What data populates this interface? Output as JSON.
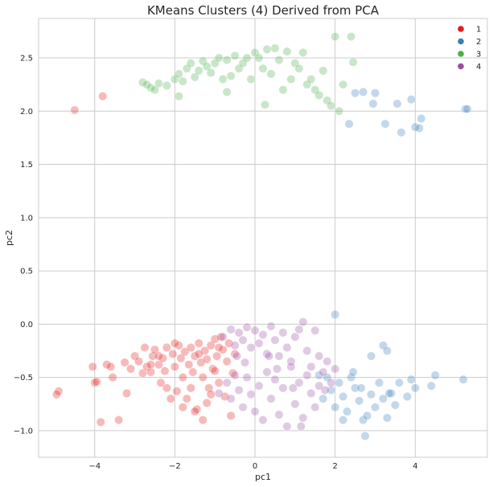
{
  "chart_data": {
    "type": "scatter",
    "title": "KMeans Clusters (4) Derived from PCA",
    "xlabel": "pc1",
    "ylabel": "pc2",
    "xlim": [
      -5.4,
      5.8
    ],
    "ylim": [
      -1.25,
      2.87
    ],
    "xticks": [
      -4,
      -2,
      0,
      2,
      4
    ],
    "yticks": [
      -1.0,
      -0.5,
      0.0,
      0.5,
      1.0,
      1.5,
      2.0,
      2.5
    ],
    "grid": true,
    "legend_position": "top-right",
    "point_alpha": 0.3,
    "series": [
      {
        "name": "1",
        "color": "#e41a1c",
        "points": [
          [
            -4.5,
            2.01
          ],
          [
            -3.8,
            2.14
          ],
          [
            -4.9,
            -0.63
          ],
          [
            -4.95,
            -0.66
          ],
          [
            -4.0,
            -0.55
          ],
          [
            -4.05,
            -0.4
          ],
          [
            -3.95,
            -0.54
          ],
          [
            -3.85,
            -0.92
          ],
          [
            -3.7,
            -0.38
          ],
          [
            -3.6,
            -0.4
          ],
          [
            -3.55,
            -0.5
          ],
          [
            -3.4,
            -0.9
          ],
          [
            -3.25,
            -0.36
          ],
          [
            -3.2,
            -0.65
          ],
          [
            -3.1,
            -0.42
          ],
          [
            -3.0,
            -0.3
          ],
          [
            -2.9,
            -0.35
          ],
          [
            -2.8,
            -0.46
          ],
          [
            -2.75,
            -0.22
          ],
          [
            -2.7,
            -0.4
          ],
          [
            -2.6,
            -0.45
          ],
          [
            -2.55,
            -0.3
          ],
          [
            -2.5,
            -0.24
          ],
          [
            -2.4,
            -0.38
          ],
          [
            -2.35,
            -0.55
          ],
          [
            -2.3,
            -0.32
          ],
          [
            -2.25,
            -0.44
          ],
          [
            -2.2,
            -0.22
          ],
          [
            -2.1,
            -0.7
          ],
          [
            -2.05,
            -0.28
          ],
          [
            -2.0,
            -0.4
          ],
          [
            -1.95,
            -0.63
          ],
          [
            -1.9,
            -0.2
          ],
          [
            -1.85,
            -0.32
          ],
          [
            -1.8,
            -0.5
          ],
          [
            -1.75,
            -0.26
          ],
          [
            -1.7,
            -0.7
          ],
          [
            -1.65,
            -0.38
          ],
          [
            -1.6,
            -0.22
          ],
          [
            -1.55,
            -0.45
          ],
          [
            -1.5,
            -0.3
          ],
          [
            -1.45,
            -0.8
          ],
          [
            -1.4,
            -0.18
          ],
          [
            -1.35,
            -0.36
          ],
          [
            -1.3,
            -0.5
          ],
          [
            -1.25,
            -0.25
          ],
          [
            -1.2,
            -0.33
          ],
          [
            -1.15,
            -0.6
          ],
          [
            -1.1,
            -0.2
          ],
          [
            -1.05,
            -0.42
          ],
          [
            -1.0,
            -0.14
          ],
          [
            -0.95,
            -0.3
          ],
          [
            -0.9,
            -0.55
          ],
          [
            -0.85,
            -0.12
          ],
          [
            -0.8,
            -0.24
          ],
          [
            -0.75,
            -0.68
          ],
          [
            -0.7,
            -0.35
          ],
          [
            -0.65,
            -0.18
          ],
          [
            -0.6,
            -0.86
          ],
          [
            -0.55,
            -0.46
          ],
          [
            -0.5,
            -0.28
          ],
          [
            -1.1,
            -0.66
          ],
          [
            -1.2,
            -0.74
          ],
          [
            -1.3,
            -0.9
          ],
          [
            -1.5,
            -0.82
          ],
          [
            -1.8,
            -0.78
          ],
          [
            -2.2,
            -0.6
          ],
          [
            -2.6,
            -0.38
          ],
          [
            -1.6,
            -0.6
          ],
          [
            -1.0,
            -0.44
          ],
          [
            -0.9,
            -0.22
          ],
          [
            -2.0,
            -0.18
          ],
          [
            -2.4,
            -0.3
          ],
          [
            -1.4,
            -0.28
          ]
        ]
      },
      {
        "name": "2",
        "color": "#377eb8",
        "points": [
          [
            2.5,
            2.17
          ],
          [
            2.7,
            2.18
          ],
          [
            3.0,
            2.17
          ],
          [
            2.95,
            2.07
          ],
          [
            2.35,
            1.88
          ],
          [
            3.25,
            1.88
          ],
          [
            3.55,
            2.07
          ],
          [
            3.65,
            1.8
          ],
          [
            3.9,
            2.11
          ],
          [
            4.0,
            1.85
          ],
          [
            4.15,
            1.93
          ],
          [
            4.1,
            1.84
          ],
          [
            5.25,
            2.02
          ],
          [
            5.3,
            2.02
          ],
          [
            2.0,
            0.09
          ],
          [
            2.9,
            -0.3
          ],
          [
            3.2,
            -0.2
          ],
          [
            3.3,
            -0.25
          ],
          [
            4.5,
            -0.48
          ],
          [
            5.2,
            -0.52
          ],
          [
            1.6,
            -0.48
          ],
          [
            1.7,
            -0.7
          ],
          [
            1.8,
            -0.5
          ],
          [
            1.9,
            -0.62
          ],
          [
            2.0,
            -0.78
          ],
          [
            2.1,
            -0.55
          ],
          [
            2.2,
            -0.68
          ],
          [
            2.3,
            -0.82
          ],
          [
            2.4,
            -0.5
          ],
          [
            2.5,
            -0.6
          ],
          [
            2.6,
            -0.72
          ],
          [
            2.7,
            -0.9
          ],
          [
            2.75,
            -1.05
          ],
          [
            2.8,
            -0.86
          ],
          [
            2.9,
            -0.66
          ],
          [
            3.0,
            -0.78
          ],
          [
            3.1,
            -0.55
          ],
          [
            3.2,
            -0.7
          ],
          [
            3.3,
            -0.88
          ],
          [
            3.4,
            -0.65
          ],
          [
            3.5,
            -0.76
          ],
          [
            3.6,
            -0.55
          ],
          [
            3.8,
            -0.68
          ],
          [
            3.9,
            -0.52
          ],
          [
            4.0,
            -0.6
          ],
          [
            4.4,
            -0.58
          ],
          [
            2.2,
            -0.9
          ],
          [
            2.45,
            -0.45
          ],
          [
            2.65,
            -0.6
          ],
          [
            3.35,
            -0.65
          ]
        ]
      },
      {
        "name": "3",
        "color": "#4daf4a",
        "points": [
          [
            -2.8,
            2.27
          ],
          [
            -2.7,
            2.25
          ],
          [
            -2.6,
            2.22
          ],
          [
            -2.5,
            2.2
          ],
          [
            -2.4,
            2.26
          ],
          [
            -2.2,
            2.24
          ],
          [
            -2.0,
            2.3
          ],
          [
            -1.9,
            2.35
          ],
          [
            -1.8,
            2.28
          ],
          [
            -1.7,
            2.4
          ],
          [
            -1.6,
            2.45
          ],
          [
            -1.5,
            2.32
          ],
          [
            -1.4,
            2.38
          ],
          [
            -1.3,
            2.47
          ],
          [
            -1.2,
            2.42
          ],
          [
            -1.1,
            2.36
          ],
          [
            -1.0,
            2.45
          ],
          [
            -0.9,
            2.5
          ],
          [
            -0.8,
            2.3
          ],
          [
            -0.7,
            2.48
          ],
          [
            -0.6,
            2.33
          ],
          [
            -0.5,
            2.52
          ],
          [
            -0.4,
            2.4
          ],
          [
            -0.3,
            2.45
          ],
          [
            -0.2,
            2.5
          ],
          [
            -0.1,
            2.3
          ],
          [
            0.0,
            2.55
          ],
          [
            0.1,
            2.5
          ],
          [
            0.2,
            2.4
          ],
          [
            0.3,
            2.58
          ],
          [
            0.4,
            2.35
          ],
          [
            0.5,
            2.59
          ],
          [
            0.6,
            2.48
          ],
          [
            0.7,
            2.2
          ],
          [
            0.8,
            2.56
          ],
          [
            0.9,
            2.3
          ],
          [
            1.0,
            2.45
          ],
          [
            1.1,
            2.4
          ],
          [
            1.2,
            2.55
          ],
          [
            1.3,
            2.25
          ],
          [
            1.4,
            2.3
          ],
          [
            1.5,
            2.2
          ],
          [
            1.6,
            2.15
          ],
          [
            1.7,
            2.38
          ],
          [
            1.8,
            2.1
          ],
          [
            1.9,
            2.05
          ],
          [
            2.0,
            2.7
          ],
          [
            2.1,
            2.0
          ],
          [
            2.2,
            2.25
          ],
          [
            2.4,
            2.7
          ],
          [
            2.45,
            2.46
          ],
          [
            -1.9,
            2.14
          ],
          [
            -0.7,
            2.18
          ],
          [
            0.25,
            2.06
          ]
        ]
      },
      {
        "name": "4",
        "color": "#984ea3",
        "points": [
          [
            -0.8,
            -0.12
          ],
          [
            -0.6,
            -0.05
          ],
          [
            -0.5,
            -0.2
          ],
          [
            -0.4,
            -0.08
          ],
          [
            -0.3,
            -0.15
          ],
          [
            -0.2,
            -0.03
          ],
          [
            -0.1,
            -0.22
          ],
          [
            0.0,
            -0.06
          ],
          [
            0.1,
            -0.18
          ],
          [
            0.2,
            -0.1
          ],
          [
            0.3,
            -0.28
          ],
          [
            0.4,
            -0.02
          ],
          [
            0.5,
            -0.15
          ],
          [
            0.6,
            -0.3
          ],
          [
            0.7,
            -0.08
          ],
          [
            0.8,
            -0.22
          ],
          [
            0.9,
            -0.35
          ],
          [
            1.0,
            -0.12
          ],
          [
            1.1,
            -0.05
          ],
          [
            1.2,
            0.02
          ],
          [
            1.3,
            -0.25
          ],
          [
            1.4,
            -0.4
          ],
          [
            1.5,
            -0.06
          ],
          [
            1.6,
            -0.3
          ],
          [
            1.7,
            -0.45
          ],
          [
            1.8,
            -0.35
          ],
          [
            1.9,
            -0.55
          ],
          [
            2.0,
            -0.42
          ],
          [
            -0.7,
            -0.55
          ],
          [
            -0.6,
            -0.7
          ],
          [
            -0.5,
            -0.48
          ],
          [
            -0.4,
            -0.62
          ],
          [
            -0.3,
            -0.78
          ],
          [
            -0.2,
            -0.5
          ],
          [
            -0.1,
            -0.66
          ],
          [
            0.0,
            -0.82
          ],
          [
            0.1,
            -0.58
          ],
          [
            0.2,
            -0.9
          ],
          [
            0.3,
            -0.45
          ],
          [
            0.4,
            -0.7
          ],
          [
            0.5,
            -0.52
          ],
          [
            0.6,
            -0.85
          ],
          [
            0.7,
            -0.6
          ],
          [
            0.8,
            -0.96
          ],
          [
            0.9,
            -0.4
          ],
          [
            1.0,
            -0.75
          ],
          [
            1.1,
            -0.55
          ],
          [
            1.2,
            -0.88
          ],
          [
            1.3,
            -0.48
          ],
          [
            1.4,
            -0.65
          ],
          [
            1.5,
            -0.78
          ],
          [
            1.6,
            -0.58
          ],
          [
            1.15,
            -0.96
          ],
          [
            0.35,
            -0.3
          ],
          [
            -0.9,
            -0.65
          ],
          [
            -0.25,
            -0.36
          ],
          [
            0.55,
            -0.42
          ],
          [
            0.95,
            -0.6
          ],
          [
            1.75,
            -0.62
          ],
          [
            -0.45,
            -0.3
          ]
        ]
      }
    ]
  }
}
